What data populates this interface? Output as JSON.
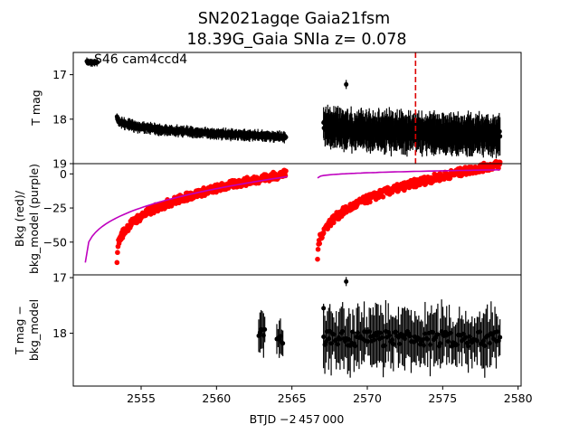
{
  "title": {
    "line1": "SN2021agqe  Gaia21fsm",
    "line2": "18.39G_Gaia SNIa z= 0.078"
  },
  "annotation": "S46 cam4ccd4",
  "xaxis": {
    "label": "BTJD −2 457 000",
    "range": [
      2550.5,
      2580.2
    ],
    "ticks": [
      2555,
      2560,
      2565,
      2570,
      2575,
      2580
    ],
    "tick_labels": [
      "2555",
      "2560",
      "2565",
      "2570",
      "2575",
      "2580"
    ]
  },
  "colors": {
    "tmag": "#000000",
    "bkg": "#ff0000",
    "bkg_model": "#bf00bf",
    "marker_line": "#dd0000"
  },
  "chart_data": [
    {
      "type": "scatter",
      "panel": "top",
      "ylabel": "T mag",
      "yrange": [
        19,
        16.5
      ],
      "inverted_y": true,
      "ticks": [
        17,
        18,
        19
      ],
      "tick_labels": [
        "17",
        "18",
        "19"
      ],
      "vertical_line": {
        "x": 2573.2,
        "style": "dashed",
        "color": "#dd0000"
      },
      "series": [
        {
          "segments": [
            {
              "x_start": 2551.4,
              "x_end": 2552.1,
              "y": 16.72,
              "err": 0.07
            },
            {
              "x_start": 2553.4,
              "x_end": 2564.6,
              "y_start": 17.95,
              "y_end": 18.4,
              "err": 0.1
            },
            {
              "x_start": 2567.1,
              "x_end": 2578.8,
              "y_start": 18.1,
              "y_end": 18.35,
              "err": 0.35
            }
          ],
          "outliers": [
            {
              "x": 2568.6,
              "y": 17.22
            }
          ]
        }
      ]
    },
    {
      "type": "scatter",
      "panel": "middle",
      "ylabel": "Bkg (red)/\nbkg_model (purple)",
      "yrange": [
        -74,
        7.5
      ],
      "ticks": [
        0,
        -25,
        -50
      ],
      "tick_labels": [
        "0",
        "−25",
        "−50"
      ],
      "series": [
        {
          "role": "bkg",
          "segments": [
            {
              "x_start": 2553.4,
              "x_end": 2564.6,
              "y_start": -63,
              "y_end": 0
            },
            {
              "x_start": 2566.7,
              "x_end": 2578.8,
              "y_start": -63,
              "y_end": 7
            }
          ]
        },
        {
          "role": "bkg_model",
          "segments": [
            {
              "x_start": 2551.3,
              "x_end": 2564.7,
              "y_start": -65,
              "y_end": -2
            },
            {
              "x_start": 2566.7,
              "x_end": 2578.8,
              "y_start": -3,
              "y_end": 3
            }
          ]
        }
      ]
    },
    {
      "type": "scatter",
      "panel": "bottom",
      "ylabel": "T mag −\nbkg_model",
      "yrange": [
        18.95,
        16.95
      ],
      "inverted_y": true,
      "ticks": [
        17,
        18
      ],
      "tick_labels": [
        "17",
        "18"
      ],
      "series": [
        {
          "segments": [
            {
              "x_start": 2562.8,
              "x_end": 2563.2,
              "y": 18.0,
              "err": 0.35
            },
            {
              "x_start": 2564.0,
              "x_end": 2564.4,
              "y": 18.1,
              "err": 0.3
            },
            {
              "x_start": 2567.1,
              "x_end": 2578.8,
              "y": 18.1,
              "err": 0.45
            }
          ],
          "outliers": [
            {
              "x": 2568.6,
              "y": 17.07
            },
            {
              "x": 2567.1,
              "y": 17.55
            }
          ]
        }
      ]
    }
  ]
}
